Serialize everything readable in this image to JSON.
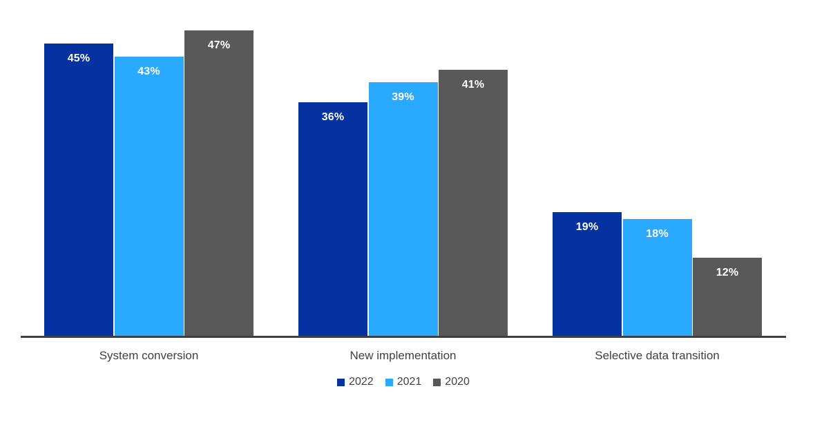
{
  "chart_data": {
    "type": "bar",
    "title": "",
    "categories": [
      "System conversion",
      "New implementation",
      "Selective data transition"
    ],
    "series": [
      {
        "name": "2022",
        "color": "#0432A0",
        "values": [
          45,
          36,
          19
        ],
        "data_labels": [
          "45%",
          "36%",
          "19%"
        ]
      },
      {
        "name": "2021",
        "color": "#29A9FF",
        "values": [
          43,
          39,
          18
        ],
        "data_labels": [
          "43%",
          "39%",
          "18%"
        ]
      },
      {
        "name": "2020",
        "color": "#595959",
        "values": [
          47,
          41,
          12
        ],
        "data_labels": [
          "47%",
          "41%",
          "12%"
        ]
      }
    ],
    "legend": {
      "position": "bottom-center",
      "entries": [
        "2022",
        "2021",
        "2020"
      ]
    },
    "value_axis": {
      "min": 0,
      "max": 50,
      "unit": "%",
      "visible": false
    },
    "category_axis": {
      "visible": true
    },
    "grid": false,
    "data_label_color": "#ffffff",
    "axis_line_color": "#404040",
    "category_label_color": "#404040",
    "background_color": "#ffffff"
  }
}
